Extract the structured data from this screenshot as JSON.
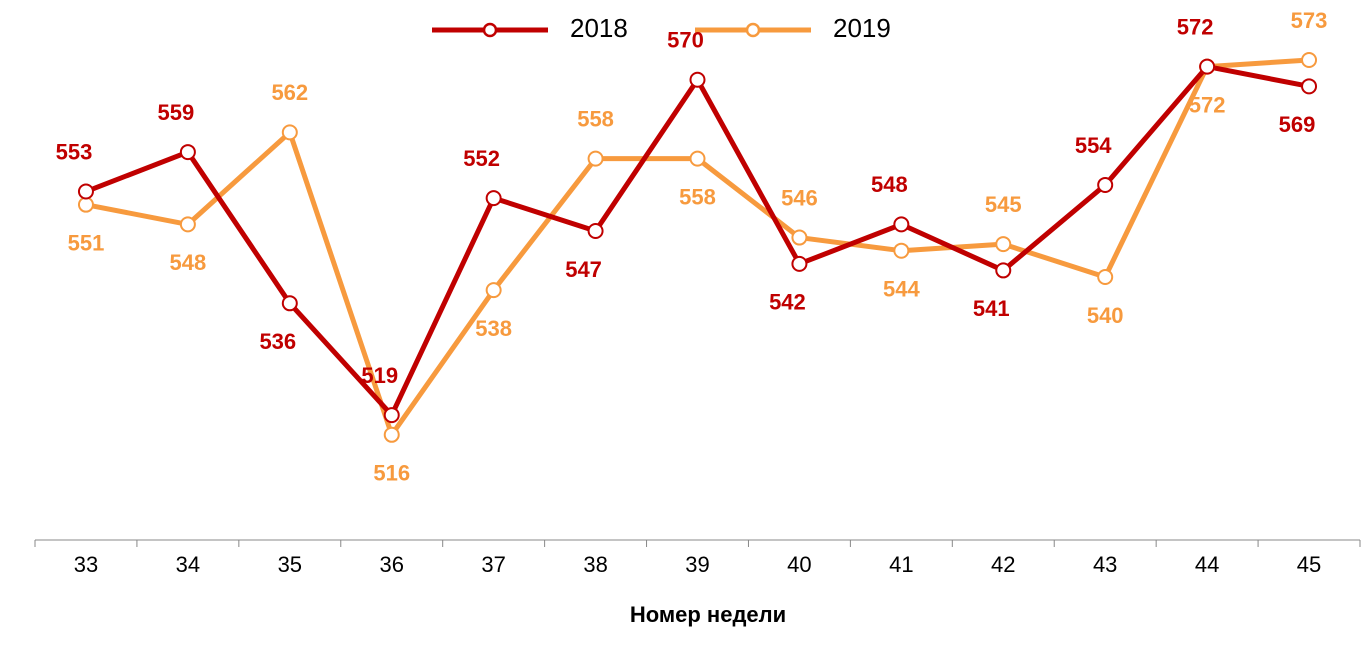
{
  "chart_data": {
    "type": "line",
    "categories": [
      "33",
      "34",
      "35",
      "36",
      "37",
      "38",
      "39",
      "40",
      "41",
      "42",
      "43",
      "44",
      "45"
    ],
    "series": [
      {
        "name": "2018",
        "color": "#c00000",
        "values": [
          553,
          559,
          536,
          519,
          552,
          547,
          570,
          542,
          548,
          541,
          554,
          572,
          569
        ]
      },
      {
        "name": "2019",
        "color": "#f79a3e",
        "values": [
          551,
          548,
          562,
          516,
          538,
          558,
          558,
          546,
          544,
          545,
          540,
          572,
          573
        ]
      }
    ],
    "ylim": [
      500,
      580
    ],
    "x_label": "Номер недели",
    "legend": "top"
  }
}
